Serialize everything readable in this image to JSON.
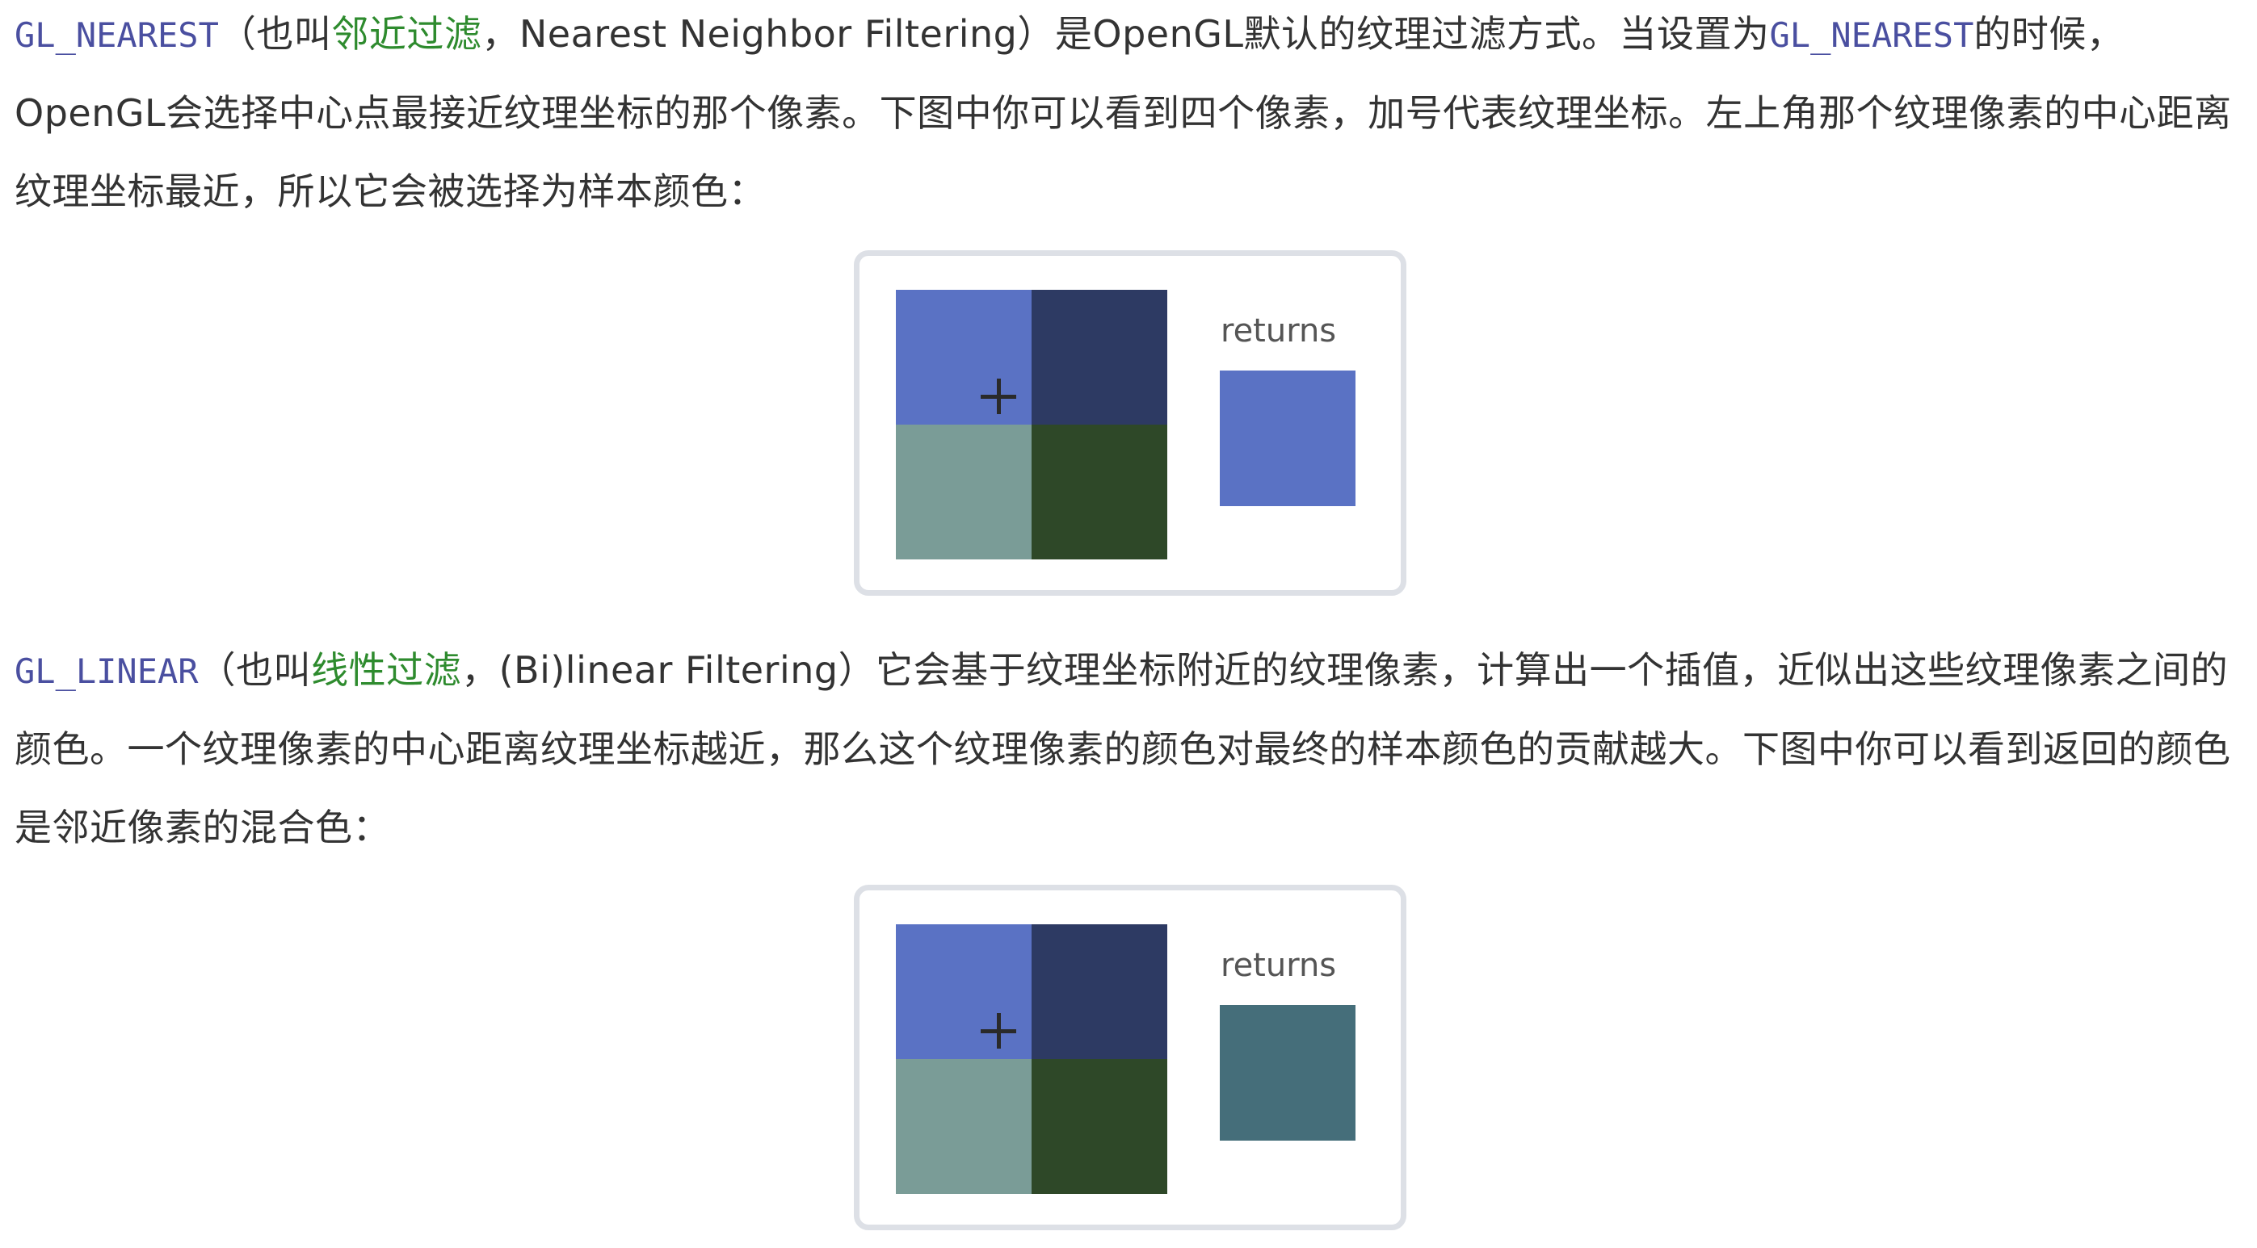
{
  "para1": {
    "code_nearest": "GL_NEAREST",
    "text_a": "（也叫",
    "term": "邻近过滤",
    "text_b": "，Nearest Neighbor Filtering）是OpenGL默认的纹理过滤方式。当设置为",
    "code_nearest_2": "GL_NEAREST",
    "text_c": "的时候，OpenGL会选择中心点最接近纹理坐标的那个像素。下图中你可以看到四个像素，加号代表纹理坐标。左上角那个纹理像素的中心距离纹理坐标最近，所以它会被选择为样本颜色："
  },
  "figure1": {
    "returns_label": "returns",
    "texel_colors": {
      "top_left": "#5a72c4",
      "top_right": "#2d3a63",
      "bottom_left": "#7a9c97",
      "bottom_right": "#2e4828"
    },
    "result_color": "#5a72c4"
  },
  "para2": {
    "code_linear": "GL_LINEAR",
    "text_a": "（也叫",
    "term": "线性过滤",
    "text_b": "，(Bi)linear Filtering）它会基于纹理坐标附近的纹理像素，计算出一个插值，近似出这些纹理像素之间的颜色。一个纹理像素的中心距离纹理坐标越近，那么这个纹理像素的颜色对最终的样本颜色的贡献越大。下图中你可以看到返回的颜色是邻近像素的混合色："
  },
  "figure2": {
    "returns_label": "returns",
    "texel_colors": {
      "top_left": "#5a72c4",
      "top_right": "#2d3a63",
      "bottom_left": "#7a9c97",
      "bottom_right": "#2e4828"
    },
    "result_color": "#456e7a"
  }
}
